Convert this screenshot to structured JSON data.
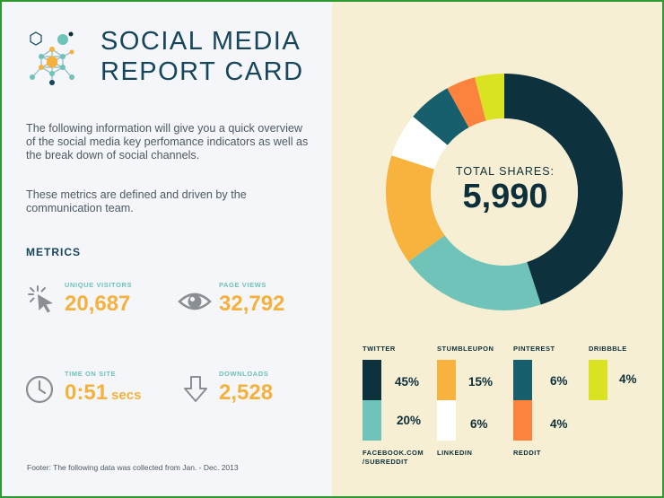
{
  "header": {
    "title_line1": "SOCIAL MEDIA",
    "title_line2": "REPORT CARD",
    "logo_icon": "network-molecule-icon"
  },
  "intro": {
    "paragraph1": "The following information will give you a quick overview of the social media key perfomance indicators as well as the break down of social channels.",
    "paragraph2": "These metrics are defined and driven by the communication team."
  },
  "metrics": {
    "heading": "METRICS",
    "items": [
      {
        "label": "UNIQUE VISITORS",
        "value": "20,687",
        "unit": "",
        "icon": "cursor-click-icon"
      },
      {
        "label": "PAGE VIEWS",
        "value": "32,792",
        "unit": "",
        "icon": "eye-icon"
      },
      {
        "label": "TIME ON SITE",
        "value": "0:51",
        "unit": "secs",
        "icon": "clock-icon"
      },
      {
        "label": "DOWNLOADS",
        "value": "2,528",
        "unit": "",
        "icon": "download-arrow-icon"
      }
    ]
  },
  "footer": "Footer: The following data was collected from Jan. - Dec. 2013",
  "colors": {
    "accent_orange": "#f5b13d",
    "accent_teal": "#6fc3b8",
    "navy": "#17455a"
  },
  "chart_data": {
    "type": "pie",
    "title": "TOTAL SHARES:",
    "total": "5,990",
    "donut": true,
    "series": [
      {
        "name": "TWITTER",
        "value": 45,
        "label": "45%",
        "color": "#0d313d"
      },
      {
        "name": "FACEBOOK.COM /SUBREDDIT",
        "value": 20,
        "label": "20%",
        "color": "#6fc3b8"
      },
      {
        "name": "STUMBLEUPON",
        "value": 15,
        "label": "15%",
        "color": "#f8b23e"
      },
      {
        "name": "LINKEDIN",
        "value": 6,
        "label": "6%",
        "color": "#ffffff"
      },
      {
        "name": "PINTEREST",
        "value": 6,
        "label": "6%",
        "color": "#175f6c"
      },
      {
        "name": "REDDIT",
        "value": 4,
        "label": "4%",
        "color": "#fb833d"
      },
      {
        "name": "DRIBBBLE",
        "value": 4,
        "label": "4%",
        "color": "#dae321"
      }
    ]
  }
}
